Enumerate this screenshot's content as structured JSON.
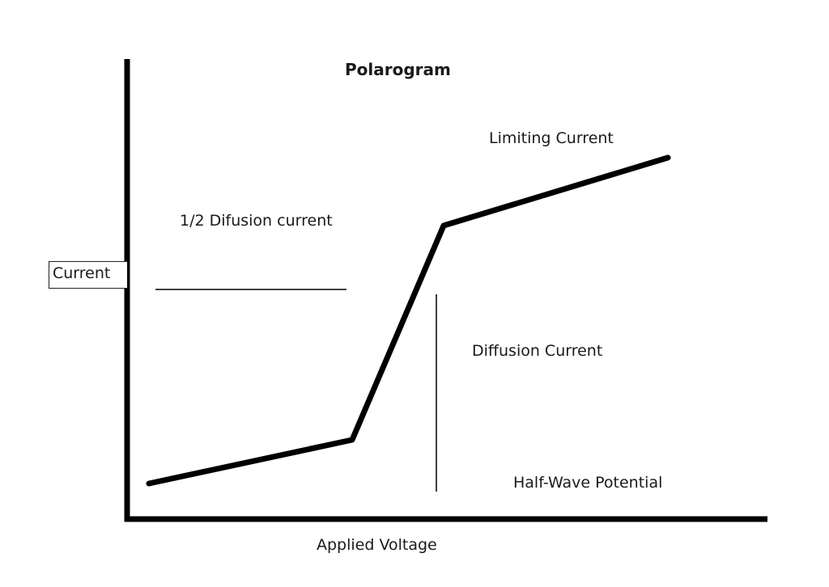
{
  "title": "Polarogram",
  "axes": {
    "y_label": "Current",
    "x_label": "Applied Voltage"
  },
  "annotations": {
    "limiting_current": "Limiting Current",
    "half_diffusion_current": "1/2 Difusion current",
    "diffusion_current": "Diffusion Current",
    "half_wave_potential": "Half-Wave Potential"
  },
  "colors": {
    "line": "#000000",
    "background": "#ffffff"
  }
}
